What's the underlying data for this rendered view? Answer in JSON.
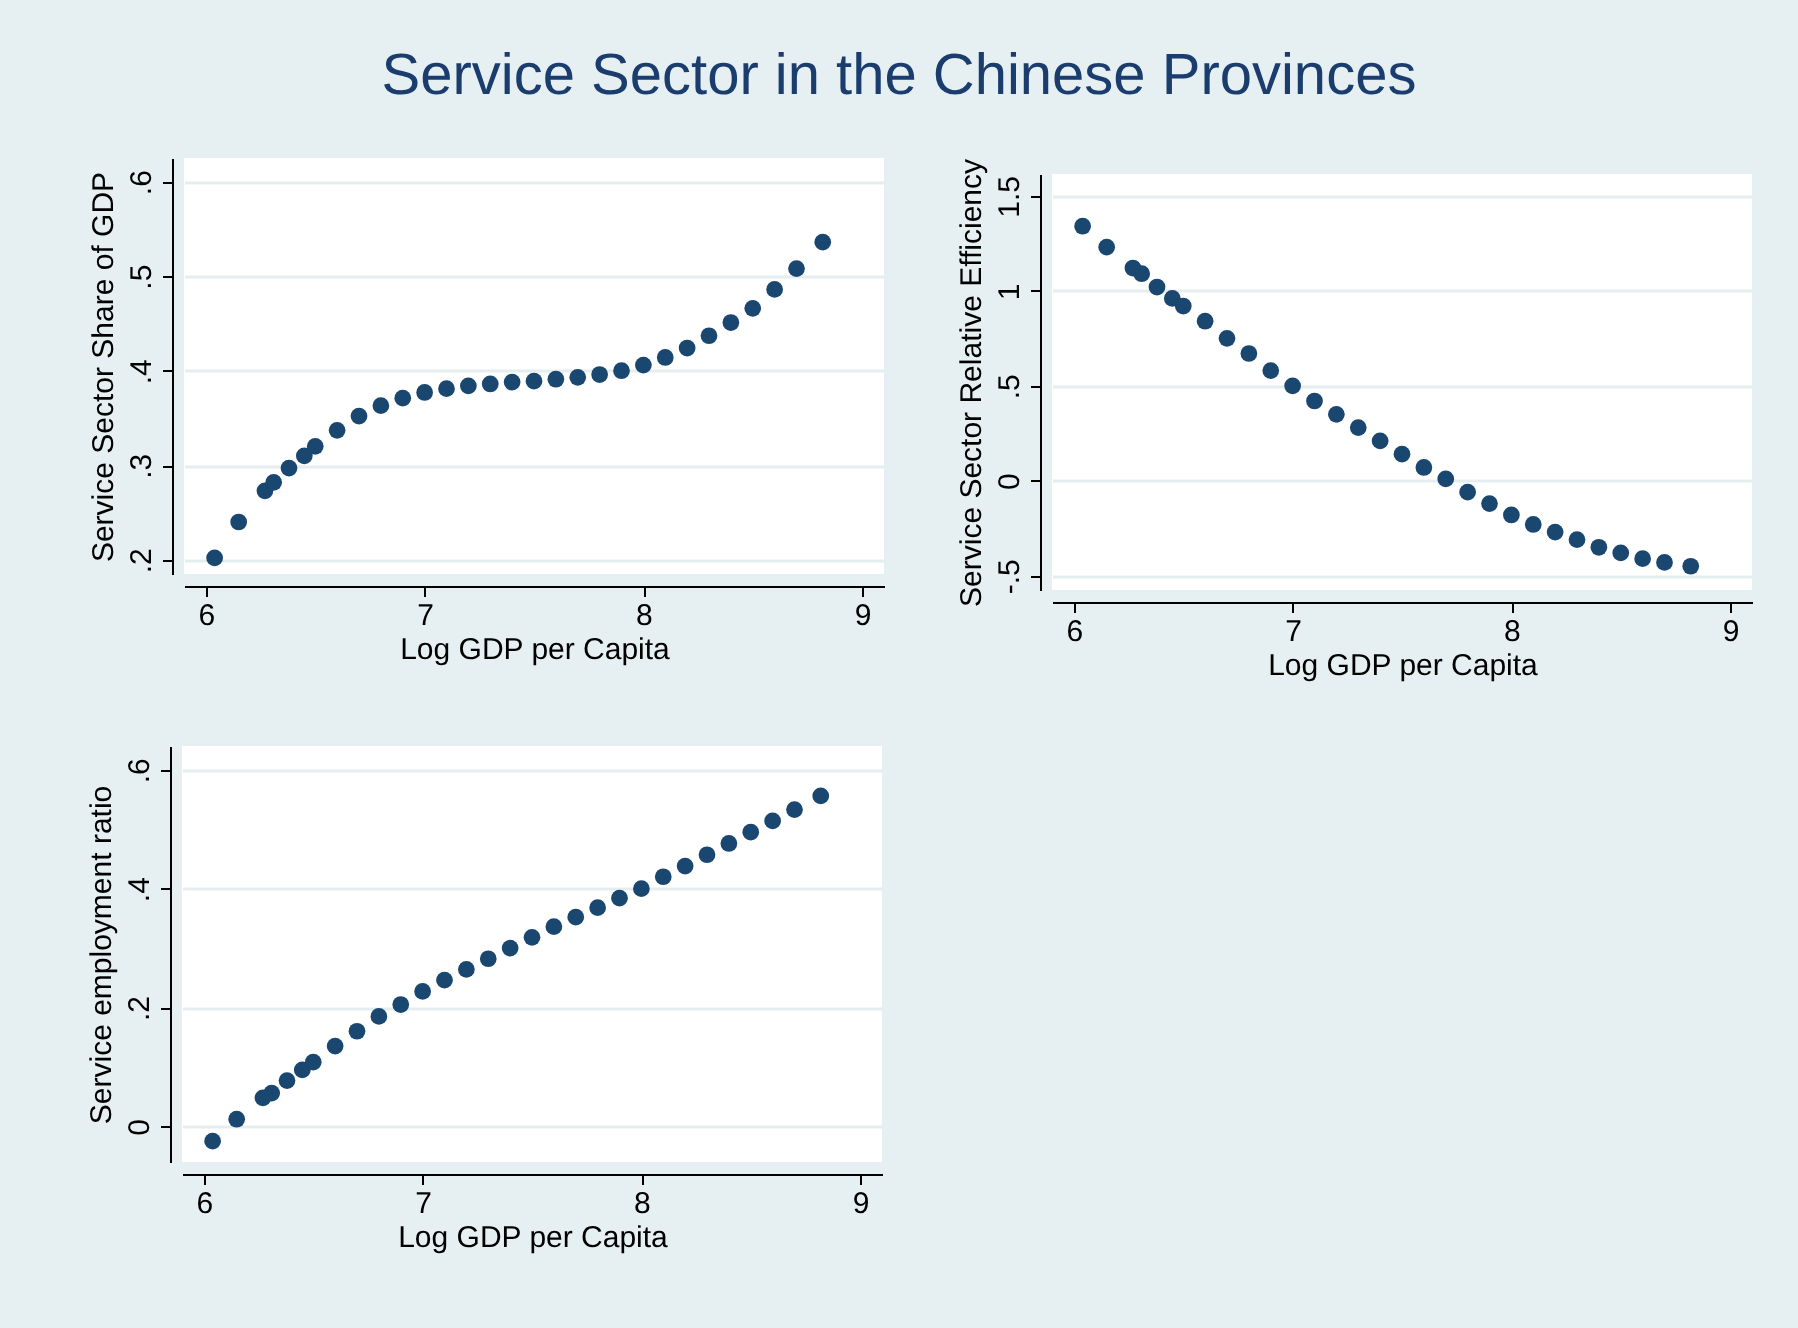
{
  "chart_data": [
    {
      "type": "scatter",
      "title": "Service Sector in the Chinese Provinces",
      "xlabel": "Log GDP per Capita",
      "ylabel": "Service Sector Share of GDP",
      "marker": "circle",
      "grid": "y",
      "xlim": [
        5.9,
        9.1
      ],
      "xticks": [
        6,
        7,
        8,
        9
      ],
      "ylim": [
        0.185,
        0.625
      ],
      "yticks": [
        {
          "value": 0.2,
          "label": ".2"
        },
        {
          "value": 0.3,
          "label": ".3"
        },
        {
          "value": 0.4,
          "label": ".4"
        },
        {
          "value": 0.5,
          "label": ".5"
        },
        {
          "value": 0.6,
          "label": ".6"
        }
      ],
      "x": [
        6.04,
        6.15,
        6.27,
        6.31,
        6.38,
        6.45,
        6.5,
        6.6,
        6.7,
        6.8,
        6.9,
        7.0,
        7.1,
        7.2,
        7.3,
        7.4,
        7.5,
        7.6,
        7.7,
        7.8,
        7.9,
        8.0,
        8.1,
        8.2,
        8.3,
        8.4,
        8.5,
        8.6,
        8.7,
        8.82
      ],
      "series": [
        {
          "color": "#1a476f",
          "values": [
            0.202,
            0.24,
            0.273,
            0.282,
            0.297,
            0.31,
            0.32,
            0.337,
            0.352,
            0.363,
            0.371,
            0.377,
            0.381,
            0.384,
            0.386,
            0.388,
            0.389,
            0.391,
            0.393,
            0.396,
            0.4,
            0.406,
            0.414,
            0.424,
            0.437,
            0.451,
            0.466,
            0.486,
            0.508,
            0.536
          ]
        }
      ]
    },
    {
      "type": "scatter",
      "xlabel": "Log GDP per Capita",
      "ylabel": "Service Sector Relative Efficiency",
      "marker": "circle",
      "grid": "y",
      "xlim": [
        5.9,
        9.1
      ],
      "xticks": [
        6,
        7,
        8,
        9
      ],
      "ylim": [
        -0.575,
        1.615
      ],
      "yticks": [
        {
          "value": -0.5,
          "label": "-.5"
        },
        0,
        {
          "value": 0.5,
          "label": ".5"
        },
        1,
        1.5
      ],
      "x": [
        6.04,
        6.15,
        6.27,
        6.31,
        6.38,
        6.45,
        6.5,
        6.6,
        6.7,
        6.8,
        6.9,
        7.0,
        7.1,
        7.2,
        7.3,
        7.4,
        7.5,
        7.6,
        7.7,
        7.8,
        7.9,
        8.0,
        8.1,
        8.2,
        8.3,
        8.4,
        8.5,
        8.6,
        8.7,
        8.82
      ],
      "series": [
        {
          "color": "#1a476f",
          "values": [
            1.34,
            1.23,
            1.12,
            1.09,
            1.02,
            0.96,
            0.92,
            0.84,
            0.75,
            0.67,
            0.58,
            0.5,
            0.42,
            0.35,
            0.28,
            0.21,
            0.14,
            0.07,
            0.01,
            -0.06,
            -0.12,
            -0.18,
            -0.23,
            -0.27,
            -0.31,
            -0.35,
            -0.38,
            -0.41,
            -0.43,
            -0.45
          ]
        }
      ]
    },
    {
      "type": "scatter",
      "xlabel": "Log GDP per Capita",
      "ylabel": "Service employment ratio",
      "marker": "circle",
      "grid": "y",
      "xlim": [
        5.9,
        9.1
      ],
      "xticks": [
        6,
        7,
        8,
        9
      ],
      "ylim": [
        -0.06,
        0.64
      ],
      "yticks": [
        0,
        {
          "value": 0.2,
          "label": ".2"
        },
        {
          "value": 0.4,
          "label": ".4"
        },
        {
          "value": 0.6,
          "label": ".6"
        }
      ],
      "x": [
        6.04,
        6.15,
        6.27,
        6.31,
        6.38,
        6.45,
        6.5,
        6.6,
        6.7,
        6.8,
        6.9,
        7.0,
        7.1,
        7.2,
        7.3,
        7.4,
        7.5,
        7.6,
        7.7,
        7.8,
        7.9,
        8.0,
        8.1,
        8.2,
        8.3,
        8.4,
        8.5,
        8.6,
        8.7,
        8.82
      ],
      "series": [
        {
          "color": "#1a476f",
          "values": [
            -0.025,
            0.012,
            0.048,
            0.056,
            0.077,
            0.095,
            0.108,
            0.135,
            0.16,
            0.185,
            0.205,
            0.227,
            0.246,
            0.264,
            0.282,
            0.3,
            0.318,
            0.336,
            0.352,
            0.368,
            0.384,
            0.4,
            0.42,
            0.438,
            0.457,
            0.476,
            0.495,
            0.514,
            0.533,
            0.556
          ]
        }
      ]
    }
  ]
}
